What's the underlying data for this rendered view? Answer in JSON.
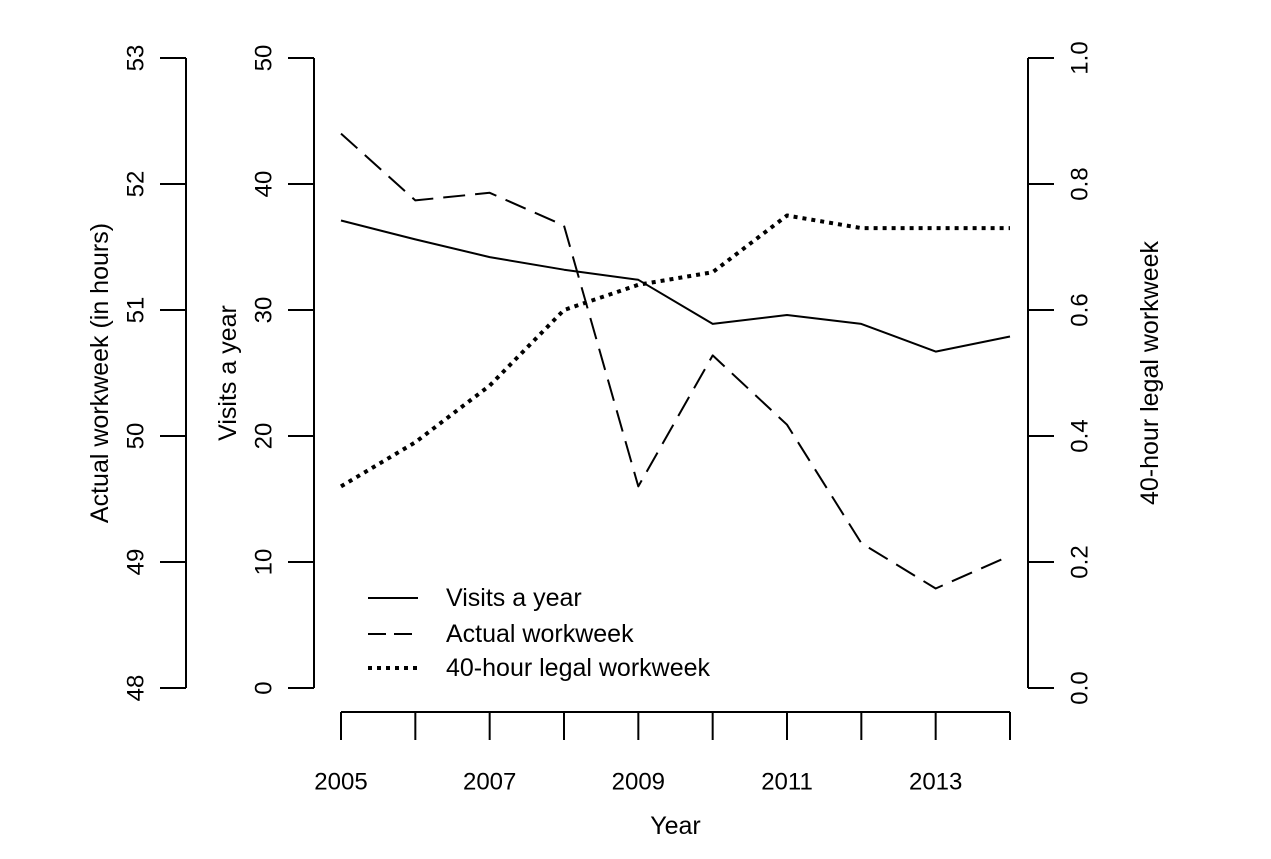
{
  "chart_data": {
    "type": "line",
    "title": "",
    "xlabel": "Year",
    "x": [
      2005,
      2006,
      2007,
      2008,
      2009,
      2010,
      2011,
      2012,
      2013,
      2014
    ],
    "x_tick_labels": [
      "2005",
      "2007",
      "2009",
      "2011",
      "2013"
    ],
    "xlim": [
      2005,
      2014
    ],
    "y_axes": {
      "actual": {
        "label": "Actual workweek (in hours)",
        "ylim": [
          48,
          53
        ],
        "ticks": [
          "48",
          "49",
          "50",
          "51",
          "52",
          "53"
        ]
      },
      "visits": {
        "label": "Visits a year",
        "ylim": [
          0,
          50
        ],
        "ticks": [
          "0",
          "10",
          "20",
          "30",
          "40",
          "50"
        ]
      },
      "legal": {
        "label": "40-hour legal workweek",
        "ylim": [
          0.0,
          1.0
        ],
        "ticks": [
          "0.0",
          "0.2",
          "0.4",
          "0.6",
          "0.8",
          "1.0"
        ]
      }
    },
    "series": [
      {
        "name": "Visits a year",
        "axis": "visits",
        "line_style": "solid",
        "values": [
          37.1,
          35.6,
          34.2,
          33.2,
          32.4,
          28.9,
          29.6,
          28.9,
          26.7,
          27.9
        ]
      },
      {
        "name": "Actual workweek",
        "axis": "actual",
        "line_style": "dashed",
        "values": [
          52.4,
          51.87,
          51.93,
          51.67,
          49.6,
          50.64,
          50.09,
          49.15,
          48.79,
          49.05
        ]
      },
      {
        "name": "40-hour legal workweek",
        "axis": "legal",
        "line_style": "dotted",
        "values": [
          0.32,
          0.39,
          0.48,
          0.6,
          0.64,
          0.66,
          0.75,
          0.73,
          0.73,
          0.73
        ]
      }
    ],
    "legend_position": "bottom-left",
    "grid": false
  }
}
